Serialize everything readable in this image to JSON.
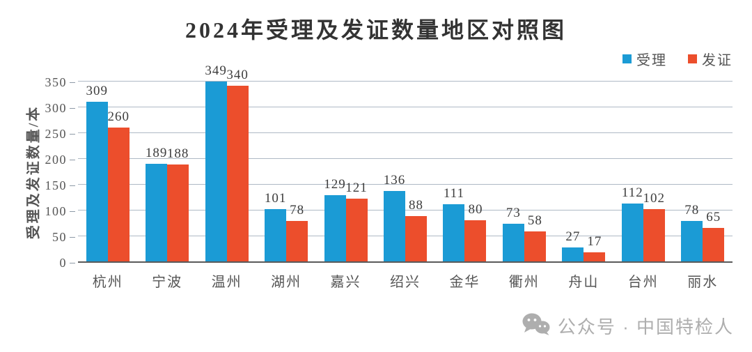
{
  "title": "2024年受理及发证数量地区对照图",
  "watermark": {
    "icon": "wechat-icon",
    "text": "公众号 · 中国特检人"
  },
  "colors": {
    "accepted_blue": "#1b9bd5",
    "issued_red": "#ec4e2c",
    "gridline": "#aeb9c5",
    "axis": "#5a5a5a",
    "text_gray": "#555555",
    "watermark_gray": "#aeaeae"
  },
  "chart_data": {
    "type": "bar",
    "title": "2024年受理及发证数量地区对照图",
    "categories": [
      "杭州",
      "宁波",
      "温州",
      "湖州",
      "嘉兴",
      "绍兴",
      "金华",
      "衢州",
      "舟山",
      "台州",
      "丽水"
    ],
    "series": [
      {
        "name": "受理",
        "color": "#1b9bd5",
        "values": [
          309,
          189,
          349,
          101,
          129,
          136,
          111,
          73,
          27,
          112,
          78
        ]
      },
      {
        "name": "发证",
        "color": "#ec4e2c",
        "values": [
          260,
          188,
          340,
          78,
          121,
          88,
          80,
          58,
          17,
          102,
          65
        ]
      }
    ],
    "xlabel": "",
    "ylabel": "受理及发证数量/本",
    "ylim": [
      0,
      350
    ],
    "yticks": [
      0,
      50,
      100,
      150,
      200,
      250,
      300,
      350
    ],
    "grid": true,
    "legend_position": "top-right",
    "value_labels": true
  }
}
